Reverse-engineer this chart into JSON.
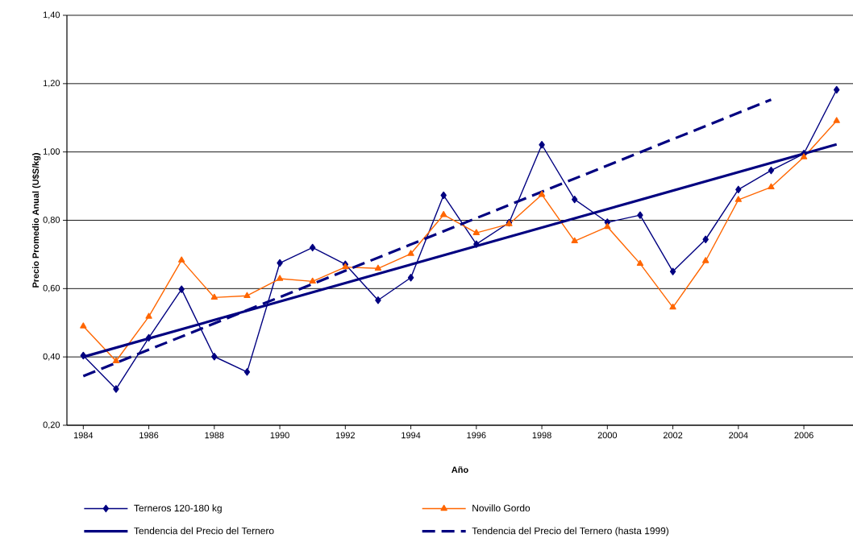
{
  "chart_data": {
    "type": "line",
    "xlabel": "Año",
    "ylabel": "Precio Promedio Anual (U$S/kg)",
    "x": [
      1984,
      1985,
      1986,
      1987,
      1988,
      1989,
      1990,
      1991,
      1992,
      1993,
      1994,
      1995,
      1996,
      1997,
      1998,
      1999,
      2000,
      2001,
      2002,
      2003,
      2004,
      2005,
      2006,
      2007
    ],
    "series": [
      {
        "name": "Terneros 120-180 kg",
        "color": "#000080",
        "marker": "diamond",
        "line_style": "solid",
        "values": [
          0.404,
          0.306,
          0.456,
          0.598,
          0.401,
          0.356,
          0.675,
          0.72,
          0.671,
          0.566,
          0.632,
          0.873,
          0.73,
          0.793,
          1.021,
          0.861,
          0.794,
          0.815,
          0.65,
          0.744,
          0.89,
          0.946,
          0.995,
          1.182
        ]
      },
      {
        "name": "Novillo Gordo",
        "color": "#ff6600",
        "marker": "triangle",
        "line_style": "solid",
        "values": [
          0.49,
          0.388,
          0.518,
          0.683,
          0.574,
          0.579,
          0.629,
          0.621,
          0.663,
          0.659,
          0.702,
          0.816,
          0.763,
          0.789,
          0.875,
          0.739,
          0.781,
          0.673,
          0.545,
          0.681,
          0.86,
          0.897,
          0.985,
          1.091
        ]
      },
      {
        "name": "Tendencia del Precio del Ternero",
        "color": "#000080",
        "marker": "none",
        "line_style": "solid",
        "x": [
          1984,
          2007
        ],
        "values": [
          0.4,
          1.022
        ]
      },
      {
        "name": "Tendencia del Precio del Ternero (hasta 1999)",
        "color": "#000080",
        "marker": "none",
        "line_style": "dashed",
        "x": [
          1984,
          2005
        ],
        "values": [
          0.344,
          1.153
        ]
      }
    ],
    "xlim": [
      1983.5,
      2007.5
    ],
    "xticks": [
      1984,
      1986,
      1988,
      1990,
      1992,
      1994,
      1996,
      1998,
      2000,
      2002,
      2004,
      2006
    ],
    "ylim": [
      0.2,
      1.4
    ],
    "yticks": [
      {
        "value": 0.2,
        "label": "0,20"
      },
      {
        "value": 0.4,
        "label": "0,40"
      },
      {
        "value": 0.6,
        "label": "0,60"
      },
      {
        "value": 0.8,
        "label": "0,80"
      },
      {
        "value": 1.0,
        "label": "1,00"
      },
      {
        "value": 1.2,
        "label": "1,20"
      },
      {
        "value": 1.4,
        "label": "1,40"
      }
    ],
    "grid": "y",
    "legend": "bottom"
  }
}
